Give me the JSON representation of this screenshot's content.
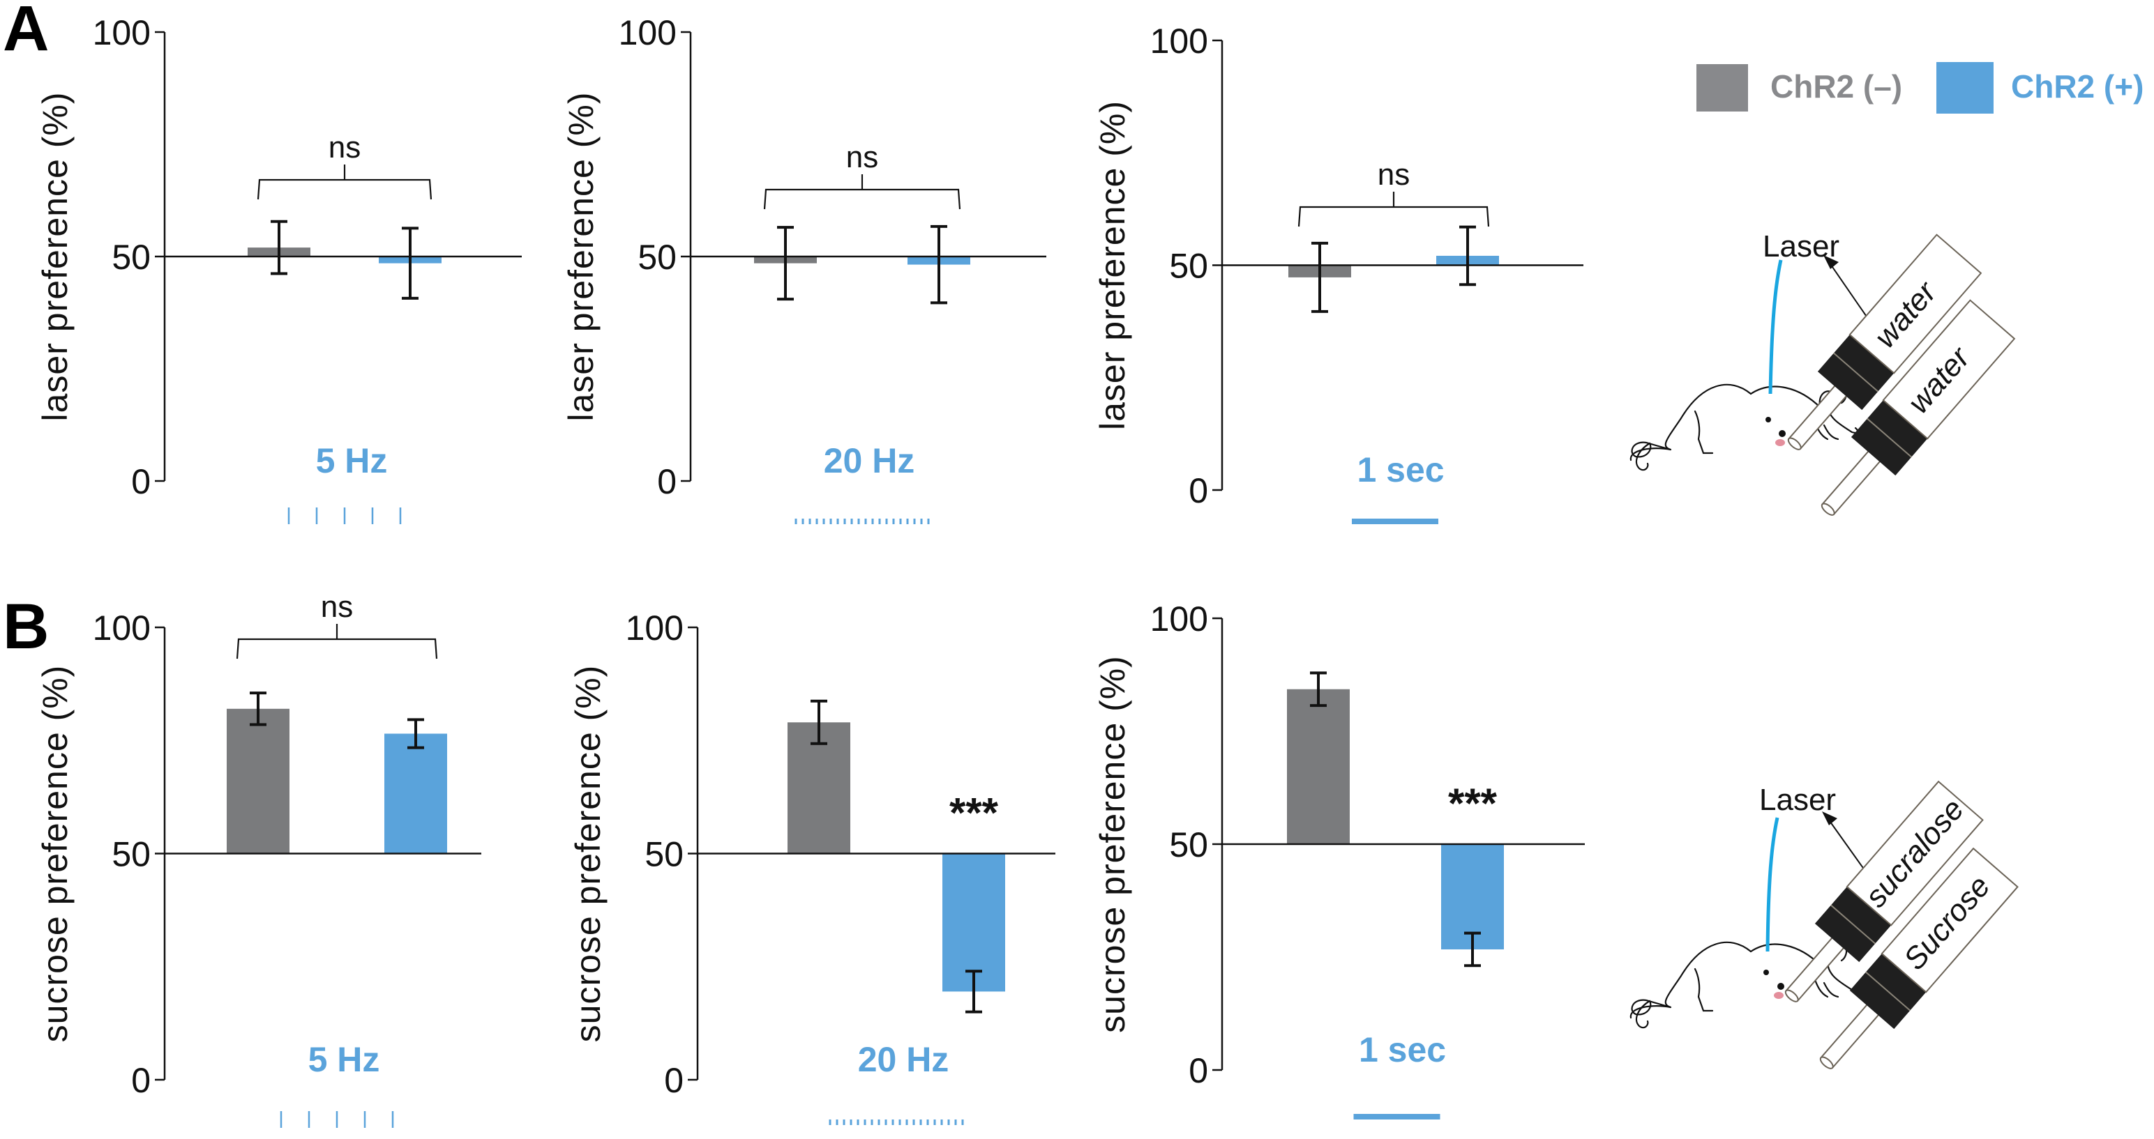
{
  "figure": {
    "panel_letters": [
      "A",
      "B"
    ],
    "legend": {
      "items": [
        {
          "label": "ChR2 (–)",
          "color": "#88898c"
        },
        {
          "label": "ChR2 (+)",
          "color": "#5aa3db"
        }
      ]
    },
    "colors": {
      "chr2_neg": "#7a7b7d",
      "chr2_pos": "#5aa3db",
      "laser_fiber": "#1aa6e0",
      "stimulus": "#5aa3db"
    },
    "illustrations": [
      {
        "laser_label": "Laser",
        "tube_labels": [
          "water",
          "water"
        ]
      },
      {
        "laser_label": "Laser",
        "tube_labels": [
          "sucralose",
          "Sucrose"
        ]
      }
    ]
  },
  "chart_data": [
    {
      "type": "bar",
      "panel": "A",
      "title": "",
      "condition": "5 Hz",
      "stimulus_pulses": 5,
      "ylabel": "laser preference (%)",
      "xlabel": "",
      "ylim": [
        0,
        100
      ],
      "yticks": [
        "0",
        "50",
        "100"
      ],
      "baseline": 50,
      "categories": [
        "ChR2 (–)",
        "ChR2 (+)"
      ],
      "values": [
        52,
        48.5
      ],
      "errors": [
        5.8,
        7.8
      ],
      "significance": "ns",
      "significance_bracket": true
    },
    {
      "type": "bar",
      "panel": "A",
      "title": "",
      "condition": "20 Hz",
      "stimulus_pulses": 20,
      "ylabel": "laser preference (%)",
      "xlabel": "",
      "ylim": [
        0,
        100
      ],
      "yticks": [
        "0",
        "50",
        "100"
      ],
      "baseline": 50,
      "categories": [
        "ChR2 (–)",
        "ChR2 (+)"
      ],
      "values": [
        48.5,
        48.2
      ],
      "errors": [
        8.0,
        8.5
      ],
      "significance": "ns",
      "significance_bracket": true
    },
    {
      "type": "bar",
      "panel": "A",
      "title": "",
      "condition": "1 sec",
      "stimulus_pulses": 0,
      "ylabel": "laser preference (%)",
      "xlabel": "",
      "ylim": [
        0,
        100
      ],
      "yticks": [
        "0",
        "50",
        "100"
      ],
      "baseline": 50,
      "categories": [
        "ChR2 (–)",
        "ChR2 (+)"
      ],
      "values": [
        47.3,
        52.1
      ],
      "errors": [
        7.6,
        6.4
      ],
      "significance": "ns",
      "significance_bracket": true
    },
    {
      "type": "bar",
      "panel": "B",
      "title": "",
      "condition": "5 Hz",
      "stimulus_pulses": 5,
      "ylabel": "sucrose preference (%)",
      "xlabel": "",
      "ylim": [
        0,
        100
      ],
      "yticks": [
        "0",
        "50",
        "100"
      ],
      "baseline": 50,
      "categories": [
        "ChR2 (–)",
        "ChR2 (+)"
      ],
      "values": [
        82,
        76.5
      ],
      "errors": [
        3.5,
        3.1
      ],
      "significance": "ns",
      "significance_bracket": true
    },
    {
      "type": "bar",
      "panel": "B",
      "title": "",
      "condition": "20 Hz",
      "stimulus_pulses": 20,
      "ylabel": "sucrose preference (%)",
      "xlabel": "",
      "ylim": [
        0,
        100
      ],
      "yticks": [
        "0",
        "50",
        "100"
      ],
      "baseline": 50,
      "categories": [
        "ChR2 (–)",
        "ChR2 (+)"
      ],
      "values": [
        79,
        19.5
      ],
      "errors": [
        4.7,
        4.5
      ],
      "significance": "***",
      "significance_bracket": false
    },
    {
      "type": "bar",
      "panel": "B",
      "title": "",
      "condition": "1 sec",
      "stimulus_pulses": 0,
      "ylabel": "sucrose preference (%)",
      "xlabel": "",
      "ylim": [
        0,
        100
      ],
      "yticks": [
        "0",
        "50",
        "100"
      ],
      "baseline": 50,
      "categories": [
        "ChR2 (–)",
        "ChR2 (+)"
      ],
      "values": [
        84.3,
        26.7
      ],
      "errors": [
        3.6,
        3.6
      ],
      "significance": "***",
      "significance_bracket": false
    }
  ]
}
